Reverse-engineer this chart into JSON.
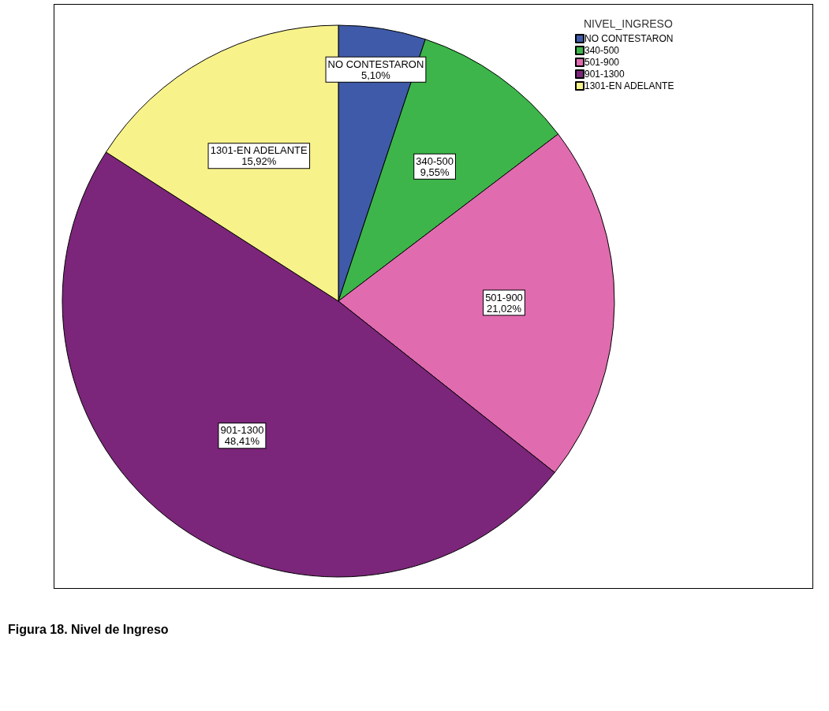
{
  "chart_data": {
    "type": "pie",
    "title": "Figura 18. Nivel de Ingreso",
    "legend_title": "NIVEL_INGRESO",
    "legend": "top right",
    "categories": [
      "NO CONTESTARON",
      "340-500",
      "501-900",
      "901-1300",
      "1301-EN ADELANTE"
    ],
    "values": [
      5.1,
      9.55,
      21.02,
      48.41,
      15.92
    ],
    "value_labels": [
      "5,10%",
      "9,55%",
      "21,02%",
      "48,41%",
      "15,92%"
    ],
    "colors": [
      "#3f5aa8",
      "#3db54a",
      "#e06baf",
      "#7b267a",
      "#f8f28b"
    ]
  }
}
